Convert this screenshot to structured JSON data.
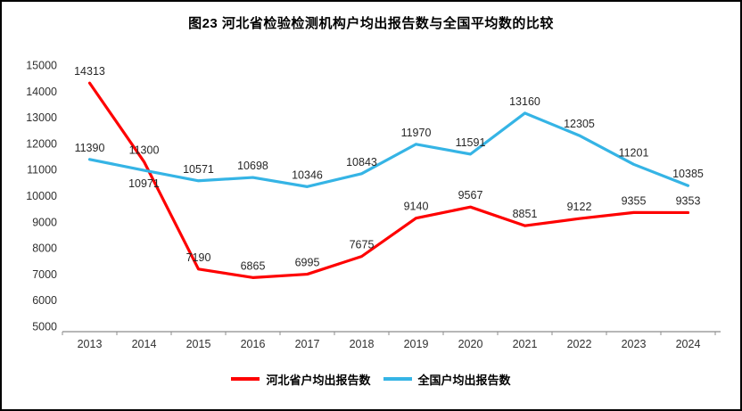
{
  "title": "图23  河北省检验检测机构户均出报告数与全国平均数的比较",
  "chart_data": {
    "type": "line",
    "x": [
      "2013",
      "2014",
      "2015",
      "2016",
      "2017",
      "2018",
      "2019",
      "2020",
      "2021",
      "2022",
      "2023",
      "2024"
    ],
    "series": [
      {
        "name": "河北省户均出报告数",
        "color": "#fe0000",
        "values": [
          14313,
          11300,
          7190,
          6865,
          6995,
          7675,
          9140,
          9567,
          8851,
          9122,
          9355,
          9353
        ],
        "labels_below": []
      },
      {
        "name": "全国户均出报告数",
        "color": "#35b4e5",
        "values": [
          11390,
          10971,
          10571,
          10698,
          10346,
          10843,
          11970,
          11591,
          13160,
          12305,
          11201,
          10385
        ],
        "labels_below": [
          1
        ]
      }
    ],
    "title": "图23  河北省检验检测机构户均出报告数与全国平均数的比较",
    "xlabel": "",
    "ylabel": "",
    "ylim": [
      5000,
      15000
    ],
    "ytick_step": 1000,
    "grid": false,
    "legend_position": "bottom",
    "data_labels": true
  }
}
